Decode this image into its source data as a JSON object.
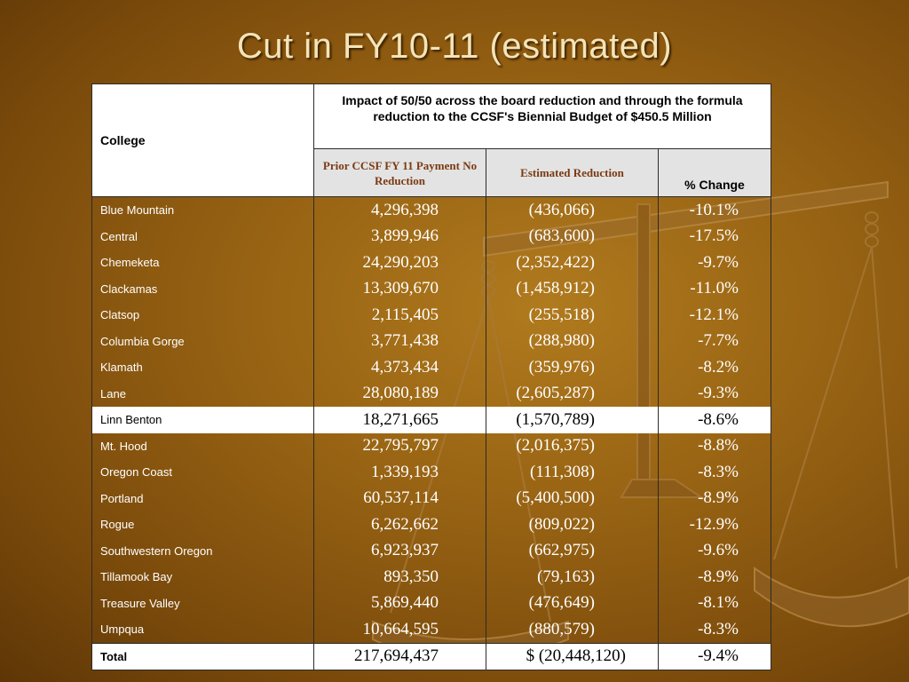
{
  "title": "Cut in FY10-11 (estimated)",
  "table": {
    "college_header": "College",
    "impact_header": "Impact of 50/50 across the board reduction and through the formula reduction to the CCSF's Biennial Budget of $450.5 Million",
    "col_prior": "Prior CCSF FY 11 Payment No Reduction",
    "col_estimated": "Estimated Reduction",
    "col_pct": "% Change",
    "rows": [
      {
        "college": "Blue Mountain",
        "prior": "4,296,398",
        "reduction": "(436,066)",
        "pct": "-10.1%"
      },
      {
        "college": "Central",
        "prior": "3,899,946",
        "reduction": "(683,600)",
        "pct": "-17.5%"
      },
      {
        "college": "Chemeketa",
        "prior": "24,290,203",
        "reduction": "(2,352,422)",
        "pct": "-9.7%"
      },
      {
        "college": "Clackamas",
        "prior": "13,309,670",
        "reduction": "(1,458,912)",
        "pct": "-11.0%"
      },
      {
        "college": "Clatsop",
        "prior": "2,115,405",
        "reduction": "(255,518)",
        "pct": "-12.1%"
      },
      {
        "college": "Columbia Gorge",
        "prior": "3,771,438",
        "reduction": "(288,980)",
        "pct": "-7.7%"
      },
      {
        "college": "Klamath",
        "prior": "4,373,434",
        "reduction": "(359,976)",
        "pct": "-8.2%"
      },
      {
        "college": "Lane",
        "prior": "28,080,189",
        "reduction": "(2,605,287)",
        "pct": "-9.3%"
      },
      {
        "college": "Linn Benton",
        "prior": "18,271,665",
        "reduction": "(1,570,789)",
        "pct": "-8.6%"
      },
      {
        "college": "Mt. Hood",
        "prior": "22,795,797",
        "reduction": "(2,016,375)",
        "pct": "-8.8%"
      },
      {
        "college": "Oregon Coast",
        "prior": "1,339,193",
        "reduction": "(111,308)",
        "pct": "-8.3%"
      },
      {
        "college": "Portland",
        "prior": "60,537,114",
        "reduction": "(5,400,500)",
        "pct": "-8.9%"
      },
      {
        "college": "Rogue",
        "prior": "6,262,662",
        "reduction": "(809,022)",
        "pct": "-12.9%"
      },
      {
        "college": "Southwestern Oregon",
        "prior": "6,923,937",
        "reduction": "(662,975)",
        "pct": "-9.6%"
      },
      {
        "college": "Tillamook Bay",
        "prior": "893,350",
        "reduction": "(79,163)",
        "pct": "-8.9%"
      },
      {
        "college": "Treasure Valley",
        "prior": "5,869,440",
        "reduction": "(476,649)",
        "pct": "-8.1%"
      },
      {
        "college": "Umpqua",
        "prior": "10,664,595",
        "reduction": "(880,579)",
        "pct": "-8.3%"
      }
    ],
    "highlighted_row": "Linn Benton",
    "total": {
      "label": "Total",
      "prior": "217,694,437",
      "reduction": "$ (20,448,120)",
      "pct": "-9.4%"
    }
  },
  "colors": {
    "background": "#9a6514",
    "title": "#f4e4b8",
    "header_text": "#7a3a12",
    "highlight_row": "#ffffff"
  },
  "decorations": {
    "background_image": "scales-of-justice"
  }
}
